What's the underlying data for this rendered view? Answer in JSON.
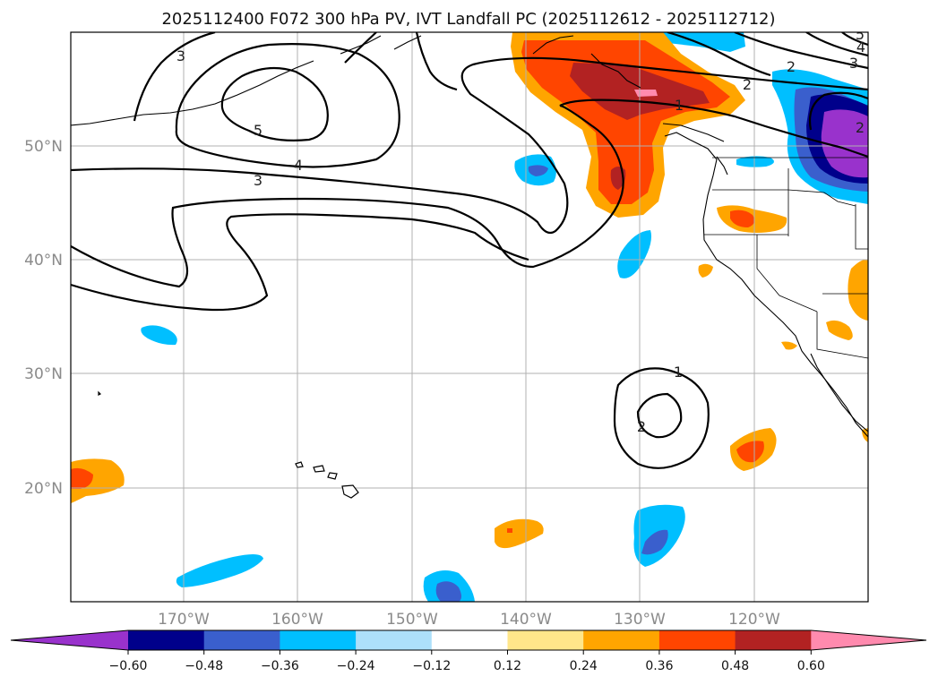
{
  "title": "2025112400 F072 300 hPa PV, IVT Landfall PC (2025112612 - 2025112712)",
  "lon_ticks": [
    "170°W",
    "160°W",
    "150°W",
    "140°W",
    "130°W",
    "120°W"
  ],
  "lat_ticks": [
    "50°N",
    "40°N",
    "30°N",
    "20°N"
  ],
  "colorbar": {
    "ticks": [
      "−0.60",
      "−0.48",
      "−0.36",
      "−0.24",
      "−0.12",
      "0.12",
      "0.24",
      "0.36",
      "0.48",
      "0.60"
    ],
    "colors": [
      "#9932CC",
      "#00008B",
      "#3A5FCD",
      "#00BFFF",
      "#ADE0FA",
      "#FFFFFF",
      "#FFE68A",
      "#FFA500",
      "#FF4500",
      "#B22222",
      "#FF8AAE"
    ]
  },
  "contour_labels": {
    "c5": "5",
    "c4": "4",
    "c3w": "3",
    "c3nw": "3",
    "c2ne": "2",
    "c2ne2": "2",
    "c3ne": "3",
    "c4ne": "4",
    "c5ne": "5",
    "c2ne3": "2",
    "c1n": "1",
    "c1s": "1",
    "c2s": "2"
  },
  "colors": {
    "pos1": "#FFA500",
    "pos2": "#FF4500",
    "pos3": "#B22222",
    "pos4": "#FF8AAE",
    "neg1": "#00BFFF",
    "neg2": "#3A5FCD",
    "neg3": "#00008B",
    "neg4": "#9932CC"
  }
}
